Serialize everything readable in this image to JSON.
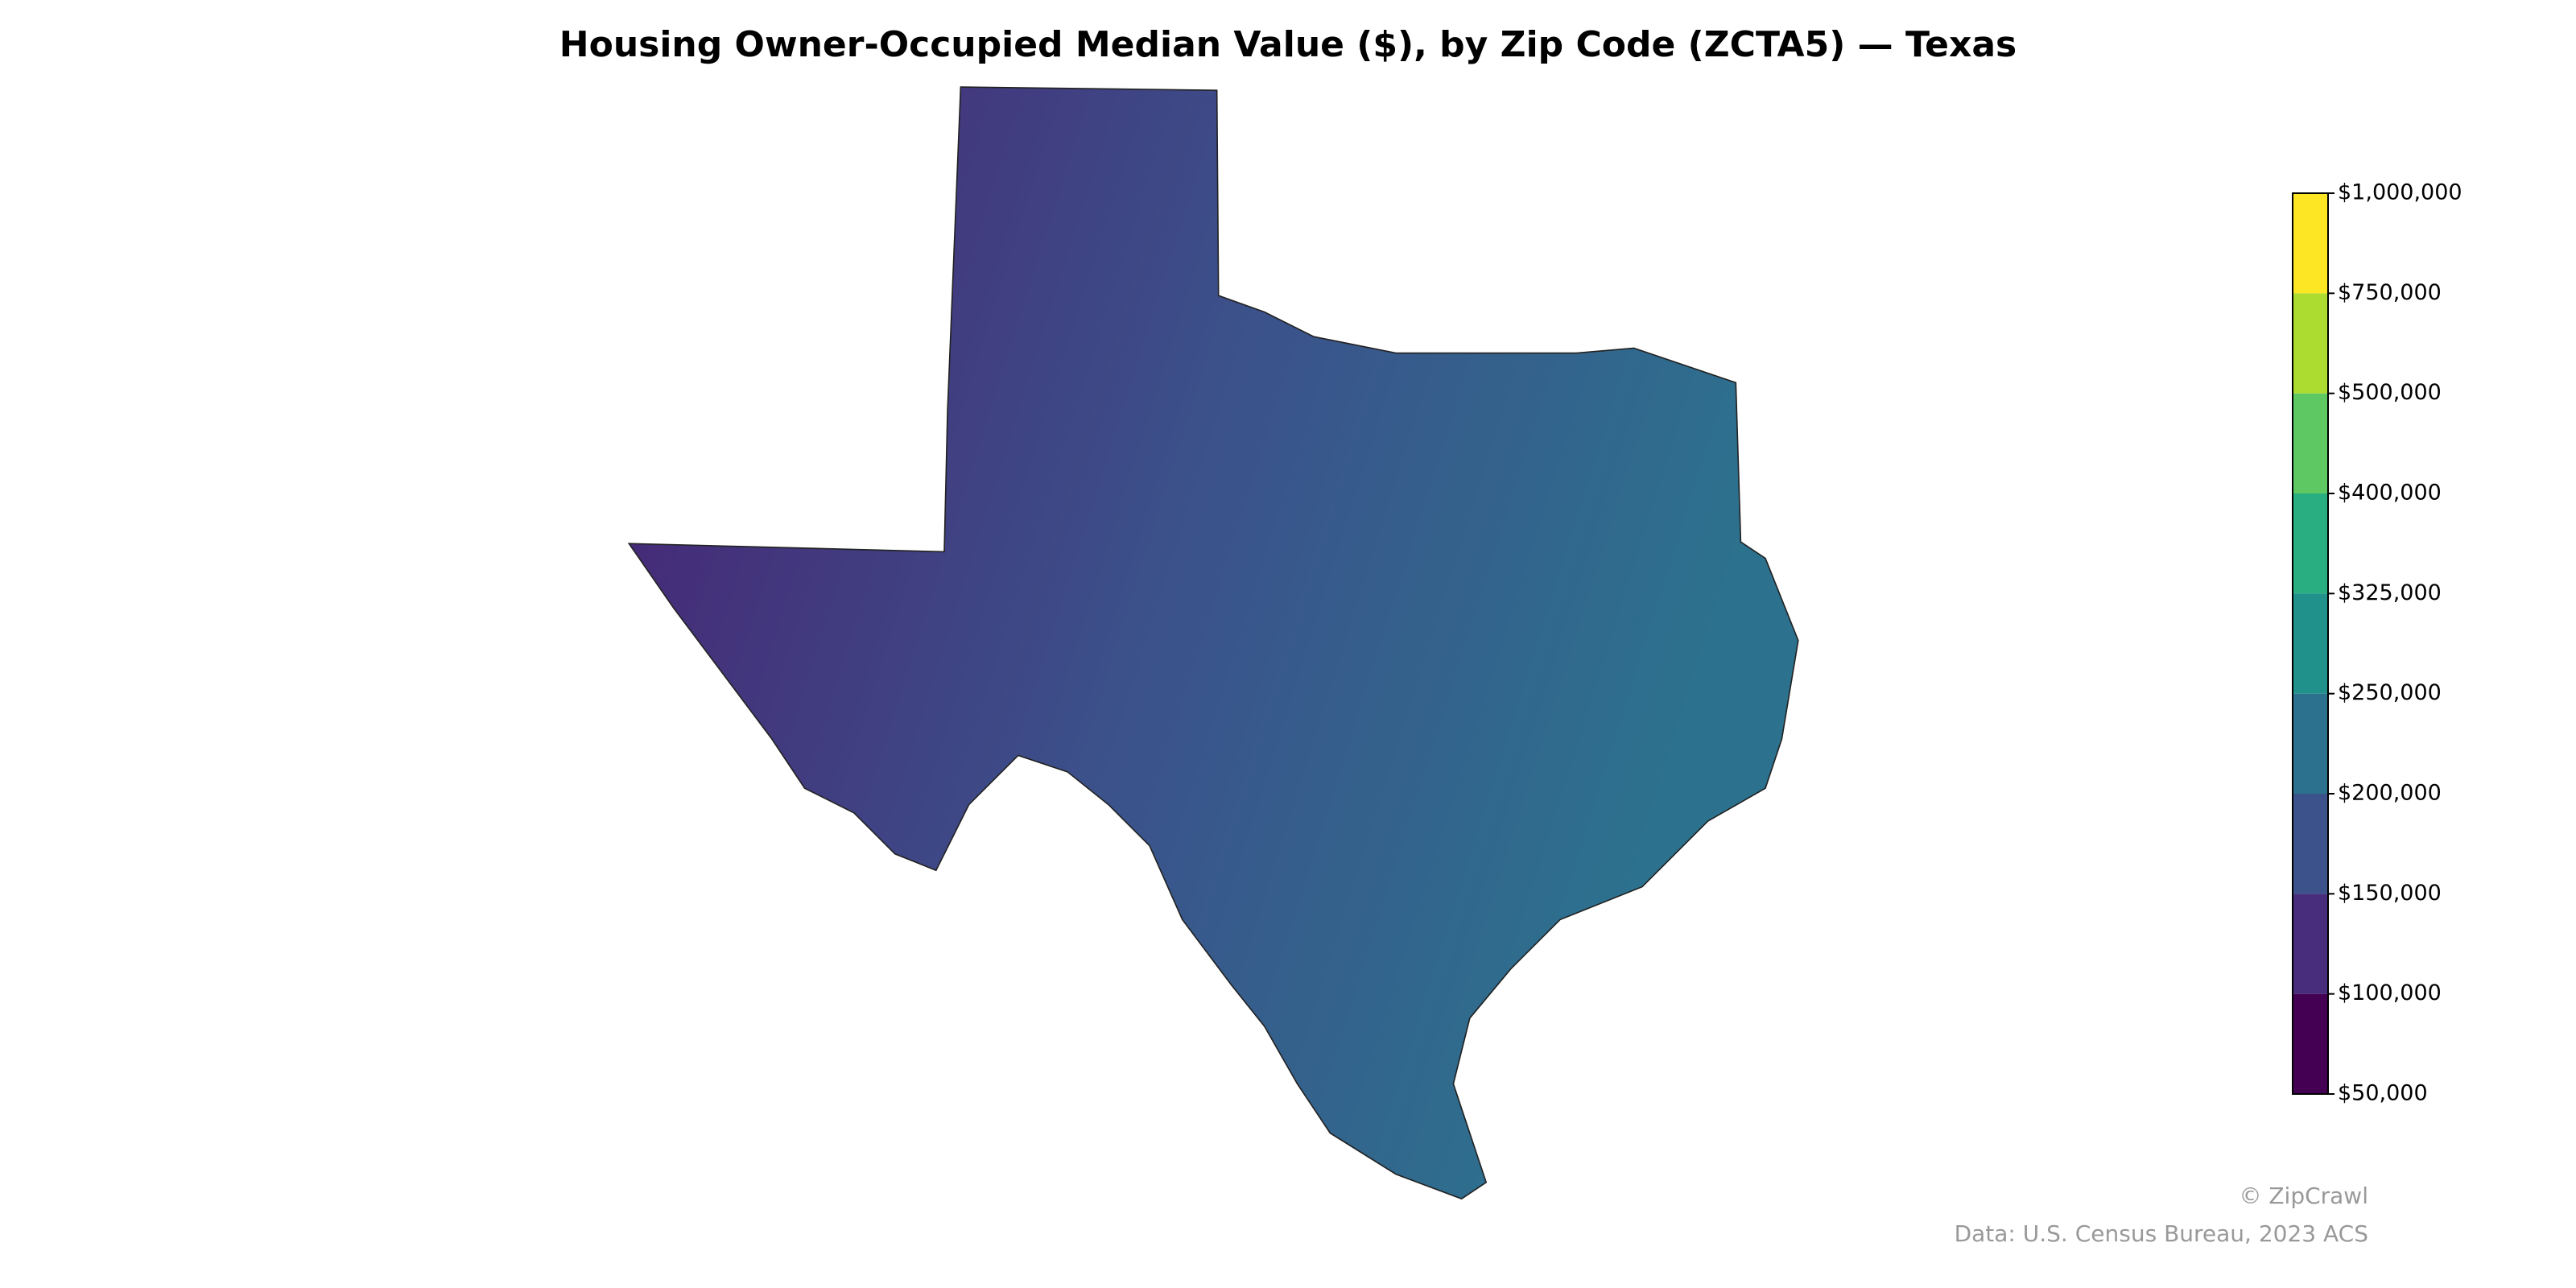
{
  "chart_data": {
    "type": "choropleth",
    "title": "Housing Owner-Occupied Median Value ($), by Zip Code (ZCTA5) — Texas",
    "colorbar": {
      "ticks": [
        {
          "value": 50000,
          "label": "$50,000"
        },
        {
          "value": 100000,
          "label": "$100,000"
        },
        {
          "value": 150000,
          "label": "$150,000"
        },
        {
          "value": 200000,
          "label": "$200,000"
        },
        {
          "value": 250000,
          "label": "$250,000"
        },
        {
          "value": 325000,
          "label": "$325,000"
        },
        {
          "value": 400000,
          "label": "$400,000"
        },
        {
          "value": 500000,
          "label": "$500,000"
        },
        {
          "value": 750000,
          "label": "$750,000"
        },
        {
          "value": 1000000,
          "label": "$1,000,000"
        }
      ],
      "colors": [
        "#440154",
        "#472d7b",
        "#3b528b",
        "#2c728e",
        "#21918c",
        "#28ae80",
        "#5ec962",
        "#addc30",
        "#fde725"
      ]
    },
    "credit": "© ZipCrawl",
    "source": "Data: U.S. Census Bureau, 2023 ACS"
  }
}
